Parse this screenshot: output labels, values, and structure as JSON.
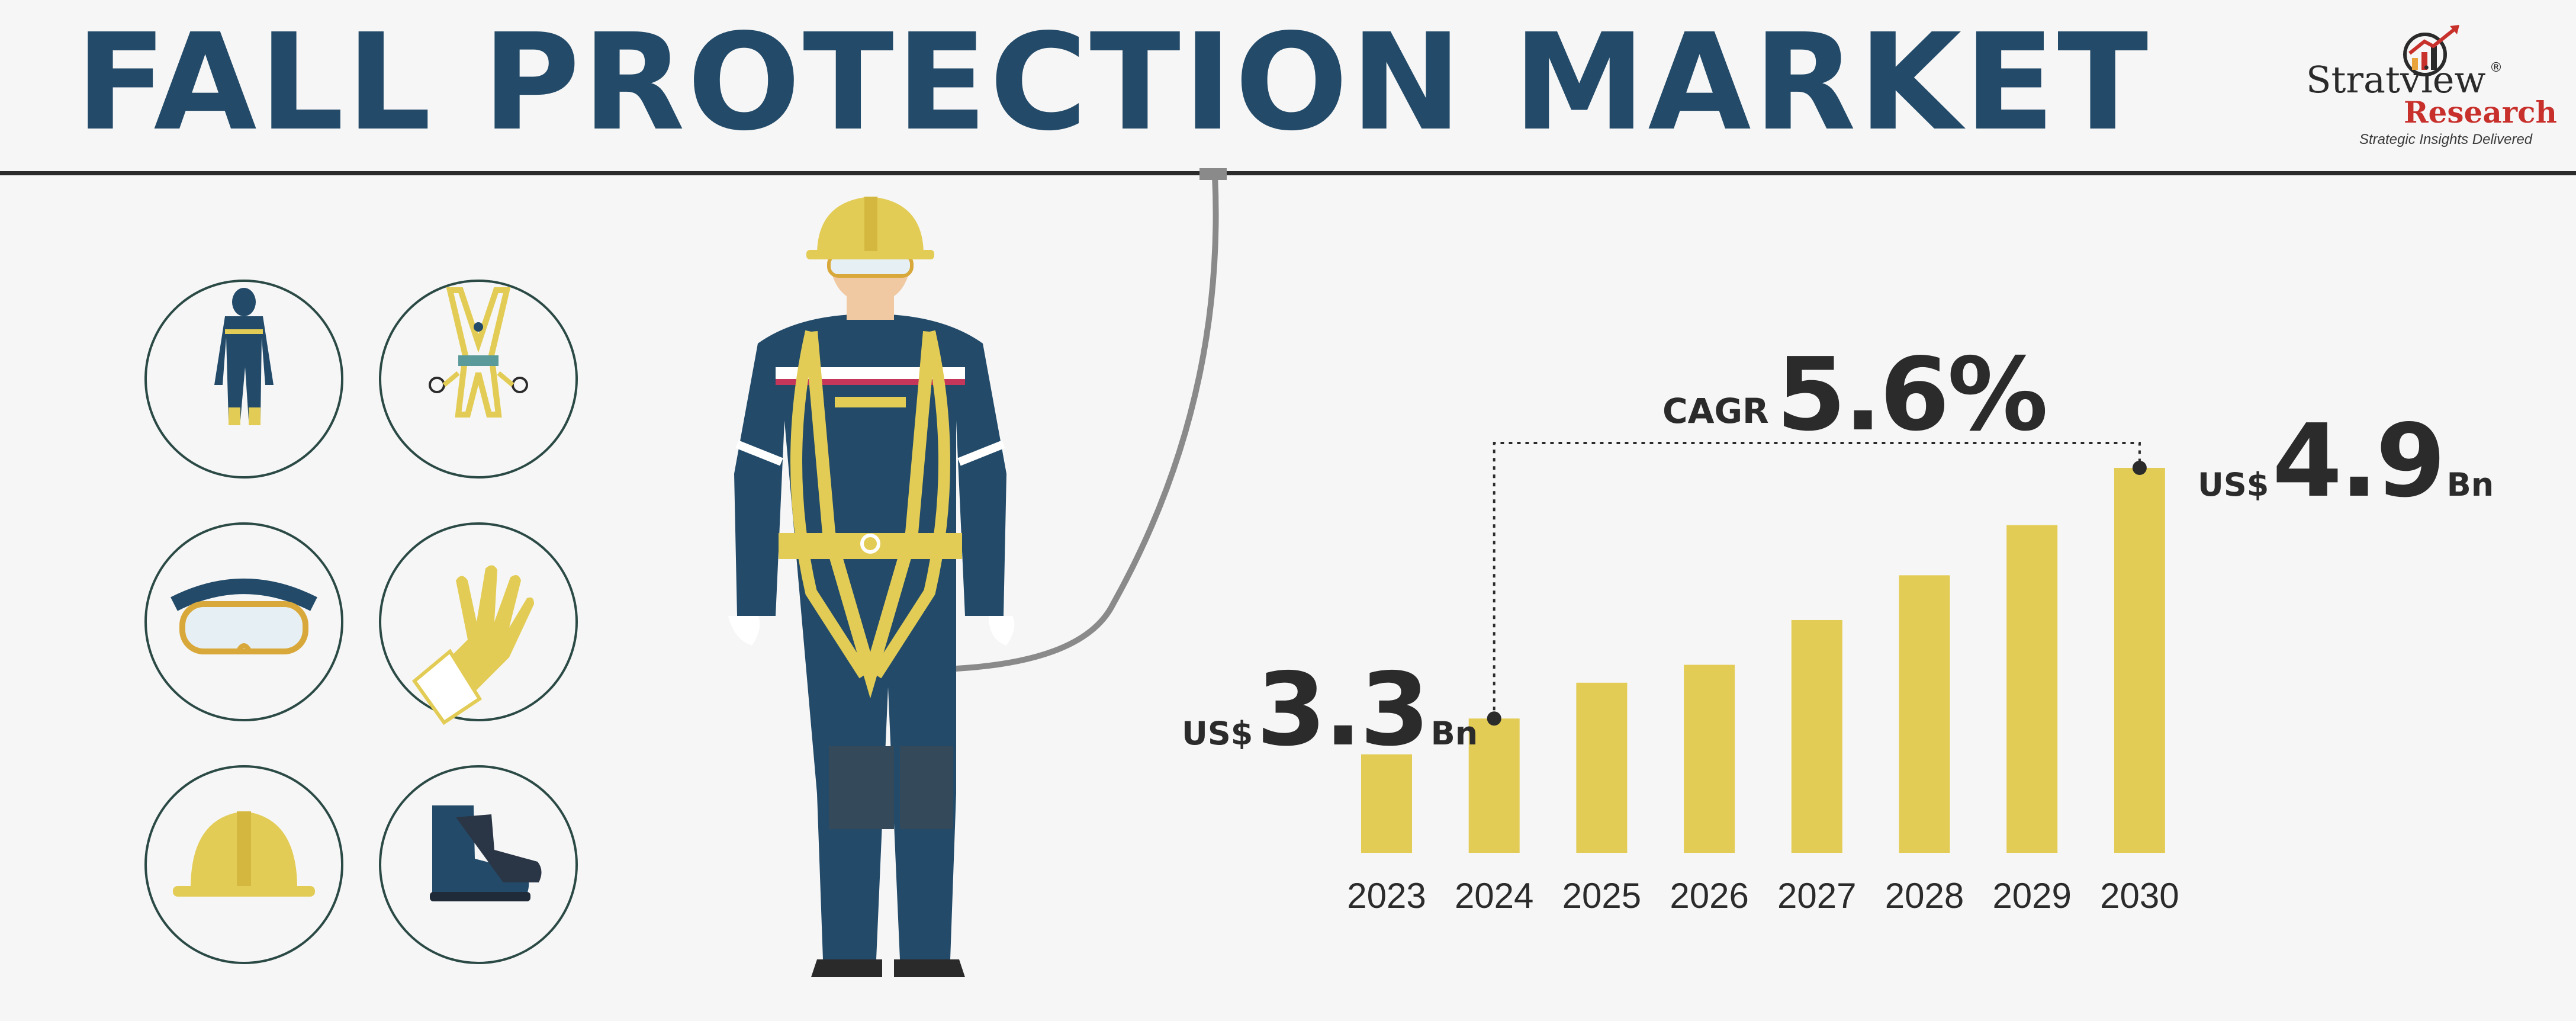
{
  "title": "FALL PROTECTION MARKET",
  "logo": {
    "name_part1": "Stratview",
    "name_part2": "Research",
    "registered": "®",
    "tagline": "Strategic Insights Delivered",
    "colors": {
      "primary": "#2a2a2a",
      "accent": "#c8302c"
    }
  },
  "icons": [
    "coverall-icon",
    "harness-icon",
    "goggles-icon",
    "glove-icon",
    "hard-hat-icon",
    "safety-boots-icon"
  ],
  "colors": {
    "title": "#234b69",
    "bar": "#e3cc55",
    "navy": "#234b69"
  },
  "chart_data": {
    "type": "bar",
    "categories": [
      "2023",
      "2024",
      "2025",
      "2026",
      "2027",
      "2028",
      "2029",
      "2030"
    ],
    "values": [
      3.3,
      3.5,
      3.7,
      3.8,
      4.05,
      4.3,
      4.58,
      4.9
    ],
    "ylim": [
      2.75,
      4.9
    ],
    "bar_color": "#e3cc55",
    "annotations": {
      "start": {
        "currency": "US$",
        "value": "3.3",
        "unit": "Bn"
      },
      "end": {
        "currency": "US$",
        "value": "4.9",
        "unit": "Bn"
      },
      "cagr": {
        "label": "CAGR",
        "value": "5.6%"
      }
    }
  }
}
